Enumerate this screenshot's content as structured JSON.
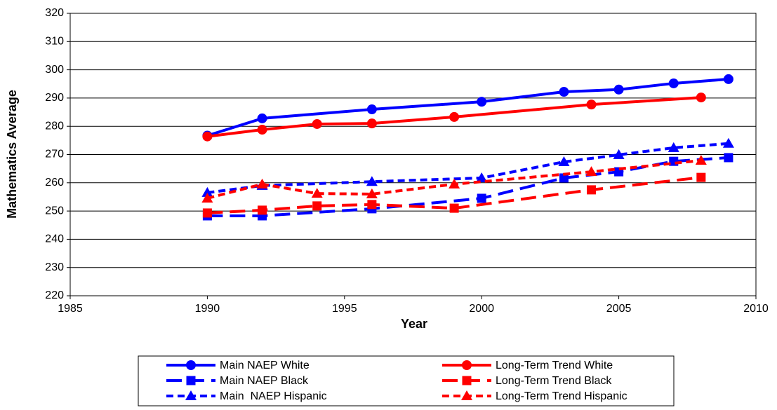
{
  "chart_data": {
    "type": "line",
    "xlabel": "Year",
    "ylabel": "Mathematics Average",
    "xlim": [
      1985,
      2010
    ],
    "xticks": [
      1985,
      1990,
      1995,
      2000,
      2005,
      2010
    ],
    "ylim": [
      220,
      320
    ],
    "yticks": [
      220,
      230,
      240,
      250,
      260,
      270,
      280,
      290,
      300,
      310,
      320
    ],
    "grid": true,
    "legend": "bottom",
    "series": [
      {
        "name": "Main NAEP White",
        "color": "#0000ff",
        "marker": "circle",
        "dash": "solid",
        "x": [
          1990,
          1992,
          1996,
          2000,
          2003,
          2005,
          2007,
          2009
        ],
        "values": [
          276.7,
          282.8,
          286.0,
          288.7,
          292.2,
          293.0,
          295.2,
          296.7
        ]
      },
      {
        "name": "Long-Term Trend White",
        "color": "#ff0000",
        "marker": "circle",
        "dash": "solid",
        "x": [
          1990,
          1992,
          1994,
          1996,
          1999,
          2004,
          2008
        ],
        "values": [
          276.4,
          278.8,
          280.8,
          281.0,
          283.3,
          287.7,
          290.2
        ]
      },
      {
        "name": "Main NAEP Black",
        "color": "#0000ff",
        "marker": "square",
        "dash": "long-dash",
        "x": [
          1990,
          1992,
          1996,
          2000,
          2003,
          2005,
          2007,
          2009
        ],
        "values": [
          248.3,
          248.3,
          250.8,
          254.5,
          261.7,
          263.9,
          267.6,
          268.9
        ]
      },
      {
        "name": "Long-Term Trend Black",
        "color": "#ff0000",
        "marker": "square",
        "dash": "long-dash",
        "x": [
          1990,
          1992,
          1994,
          1996,
          1999,
          2004,
          2008
        ],
        "values": [
          249.3,
          250.3,
          251.8,
          252.3,
          251.0,
          257.5,
          261.9
        ]
      },
      {
        "name": "Main  NAEP Hispanic",
        "color": "#0000ff",
        "marker": "triangle",
        "dash": "dash",
        "x": [
          1990,
          1992,
          1996,
          2000,
          2003,
          2005,
          2007,
          2009
        ],
        "values": [
          256.5,
          259.0,
          260.4,
          261.7,
          267.4,
          269.9,
          272.4,
          273.9
        ]
      },
      {
        "name": "Long-Term Trend Hispanic",
        "color": "#ff0000",
        "marker": "triangle",
        "dash": "dash",
        "x": [
          1990,
          1992,
          1994,
          1996,
          1999,
          2004,
          2008
        ],
        "values": [
          254.5,
          259.5,
          256.2,
          256.0,
          259.5,
          263.9,
          267.9
        ]
      }
    ]
  }
}
